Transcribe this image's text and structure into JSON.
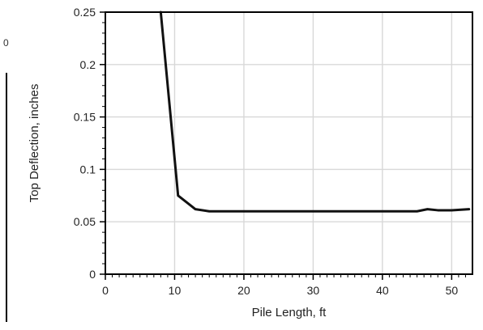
{
  "colors": {
    "background": "#ffffff",
    "axis": "#000000",
    "grid": "#d8d8d8",
    "series": "#111111",
    "text": "#222222"
  },
  "left_fragment": {
    "visible_glyph": "0"
  },
  "chart_data": {
    "type": "line",
    "title": "",
    "xlabel": "Pile Length, ft",
    "ylabel": "Top Deflection, inches",
    "xlim": [
      0,
      53
    ],
    "ylim": [
      0,
      0.25
    ],
    "x_ticks": [
      0,
      10,
      20,
      30,
      40,
      50
    ],
    "y_ticks": [
      0,
      0.05,
      0.1,
      0.15,
      0.2,
      0.25
    ],
    "x_tick_labels": [
      "0",
      "10",
      "20",
      "30",
      "40",
      "50"
    ],
    "y_tick_labels": [
      "0",
      "0.05",
      "0.1",
      "0.15",
      "0.2",
      "0.25"
    ],
    "grid": true,
    "series": [
      {
        "values": [
          {
            "x": 8.0,
            "y": 0.25
          },
          {
            "x": 10.5,
            "y": 0.075
          },
          {
            "x": 13.0,
            "y": 0.062
          },
          {
            "x": 15.0,
            "y": 0.06
          },
          {
            "x": 20.0,
            "y": 0.06
          },
          {
            "x": 30.0,
            "y": 0.06
          },
          {
            "x": 40.0,
            "y": 0.06
          },
          {
            "x": 45.0,
            "y": 0.06
          },
          {
            "x": 46.5,
            "y": 0.062
          },
          {
            "x": 48.0,
            "y": 0.061
          },
          {
            "x": 50.0,
            "y": 0.061
          },
          {
            "x": 52.5,
            "y": 0.062
          }
        ]
      }
    ]
  }
}
